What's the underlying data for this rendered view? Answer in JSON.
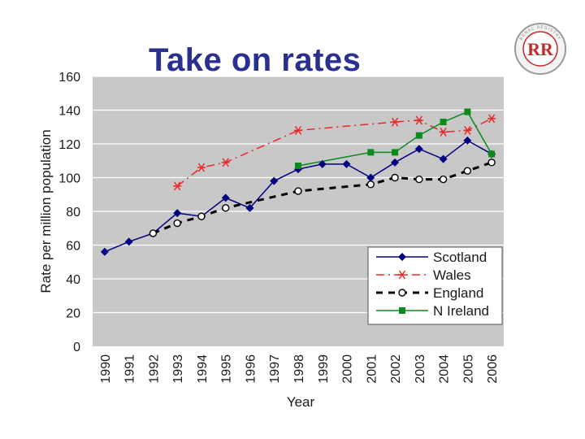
{
  "slide": {
    "title": "Take on rates"
  },
  "logo": {
    "initials": "RR",
    "ring_text": "RENAL REGISTRY"
  },
  "colors": {
    "title": "#2b2f8f",
    "plot_background": "#c8c8c8",
    "gridline": "#ffffff",
    "scotland": "#000080",
    "wales": "#e8292a",
    "england": "#000000",
    "n_ireland": "#0a8a1a",
    "logo_red": "#c8282a"
  },
  "chart_data": {
    "type": "line",
    "title": "Take on rates",
    "xlabel": "Year",
    "ylabel": "Rate per million population",
    "ylim": [
      0,
      160
    ],
    "yticks": [
      0,
      20,
      40,
      60,
      80,
      100,
      120,
      140,
      160
    ],
    "grid": true,
    "legend_position": "bottom-right",
    "categories": [
      "1990",
      "1991",
      "1992",
      "1993",
      "1994",
      "1995",
      "1996",
      "1997",
      "1998",
      "1999",
      "2000",
      "2001",
      "2002",
      "2003",
      "2004",
      "2005",
      "2006"
    ],
    "series": [
      {
        "name": "Scotland",
        "style": "solid",
        "marker": "diamond",
        "color": "#000080",
        "values": [
          56,
          62,
          67,
          79,
          77,
          88,
          82,
          98,
          105,
          108,
          108,
          100,
          109,
          117,
          111,
          122,
          114
        ]
      },
      {
        "name": "Wales",
        "style": "dashdot",
        "marker": "asterisk",
        "color": "#e8292a",
        "values": [
          null,
          null,
          null,
          95,
          106,
          109,
          null,
          null,
          128,
          null,
          null,
          null,
          133,
          134,
          127,
          128,
          135
        ]
      },
      {
        "name": "England",
        "style": "dashed",
        "marker": "open-circle",
        "color": "#000000",
        "values": [
          null,
          null,
          67,
          73,
          77,
          82,
          null,
          null,
          92,
          null,
          null,
          96,
          100,
          99,
          99,
          104,
          109
        ]
      },
      {
        "name": "N Ireland",
        "style": "solid",
        "marker": "square",
        "color": "#0a8a1a",
        "values": [
          null,
          null,
          null,
          null,
          null,
          null,
          null,
          null,
          107,
          null,
          null,
          115,
          115,
          125,
          133,
          139,
          114
        ]
      }
    ]
  }
}
